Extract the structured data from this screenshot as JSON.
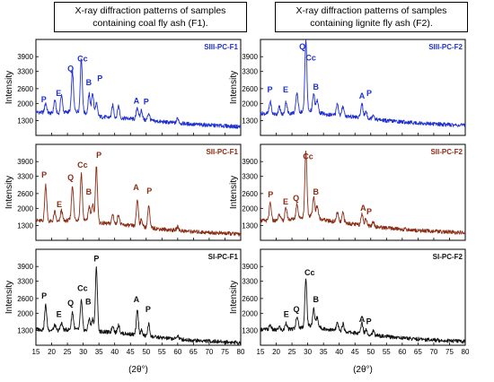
{
  "titles": {
    "left": "X-ray diffraction patterns of samples containing  coal fly ash (F1).",
    "right": "X-ray diffraction patterns of samples containing  lignite fly ash (F2)."
  },
  "chart_data": [
    {
      "type": "line",
      "column": "left",
      "row": 0,
      "sample": "SIII-PC-F1",
      "color": "#1f2fd0",
      "xlim": [
        15,
        80
      ],
      "ylim": [
        700,
        4600
      ],
      "yticks": [
        1300,
        2000,
        2600,
        3300,
        3900
      ],
      "xticks": [
        15,
        20,
        25,
        30,
        35,
        40,
        45,
        50,
        55,
        60,
        65,
        70,
        75,
        80
      ],
      "ylabel": "Intensity",
      "baseline": [
        [
          15,
          1650
        ],
        [
          22,
          1580
        ],
        [
          27,
          1700
        ],
        [
          31,
          1600
        ],
        [
          36,
          1450
        ],
        [
          45,
          1380
        ],
        [
          55,
          1250
        ],
        [
          65,
          1150
        ],
        [
          80,
          1050
        ]
      ],
      "peaks": [
        [
          18.1,
          400
        ],
        [
          21.0,
          550
        ],
        [
          23.1,
          750
        ],
        [
          26.6,
          1600
        ],
        [
          29.4,
          2200
        ],
        [
          31.9,
          800
        ],
        [
          33.0,
          900
        ],
        [
          34.2,
          500
        ],
        [
          39.4,
          500
        ],
        [
          41.2,
          500
        ],
        [
          47.2,
          500
        ],
        [
          48.5,
          400
        ],
        [
          50.8,
          300
        ],
        [
          60.0,
          200
        ]
      ],
      "annotations": [
        {
          "label": "P",
          "x": 17.5,
          "y": 2050
        },
        {
          "label": "E",
          "x": 22.2,
          "y": 2300
        },
        {
          "label": "Q",
          "x": 26.0,
          "y": 3300
        },
        {
          "label": "Cc",
          "x": 29.8,
          "y": 3700
        },
        {
          "label": "B",
          "x": 31.8,
          "y": 2750
        },
        {
          "label": "P",
          "x": 35.3,
          "y": 2900
        },
        {
          "label": "A",
          "x": 46.9,
          "y": 2000
        },
        {
          "label": "P",
          "x": 50.0,
          "y": 1950
        }
      ]
    },
    {
      "type": "line",
      "column": "left",
      "row": 1,
      "sample": "SII-PC-F1",
      "color": "#8b2c14",
      "xlim": [
        15,
        80
      ],
      "ylim": [
        700,
        4600
      ],
      "yticks": [
        1300,
        2000,
        2600,
        3300,
        3900
      ],
      "xticks": [
        15,
        20,
        25,
        30,
        35,
        40,
        45,
        50,
        55,
        60,
        65,
        70,
        75,
        80
      ],
      "ylabel": "Intensity",
      "baseline": [
        [
          15,
          1500
        ],
        [
          22,
          1450
        ],
        [
          27,
          1550
        ],
        [
          31,
          1500
        ],
        [
          36,
          1400
        ],
        [
          45,
          1300
        ],
        [
          55,
          1150
        ],
        [
          65,
          1050
        ],
        [
          80,
          950
        ]
      ],
      "peaks": [
        [
          18.1,
          1500
        ],
        [
          21.0,
          400
        ],
        [
          23.1,
          450
        ],
        [
          26.6,
          1400
        ],
        [
          29.4,
          1900
        ],
        [
          31.9,
          600
        ],
        [
          33.0,
          700
        ],
        [
          34.2,
          2300
        ],
        [
          39.4,
          400
        ],
        [
          41.2,
          400
        ],
        [
          47.2,
          1100
        ],
        [
          48.5,
          300
        ],
        [
          50.8,
          900
        ],
        [
          60.0,
          150
        ]
      ],
      "annotations": [
        {
          "label": "P",
          "x": 17.6,
          "y": 3250
        },
        {
          "label": "E",
          "x": 22.4,
          "y": 2050
        },
        {
          "label": "Q",
          "x": 26.0,
          "y": 3150
        },
        {
          "label": "Cc",
          "x": 29.8,
          "y": 3650
        },
        {
          "label": "B",
          "x": 31.8,
          "y": 2550
        },
        {
          "label": "P",
          "x": 35.0,
          "y": 4050
        },
        {
          "label": "A",
          "x": 46.8,
          "y": 2750
        },
        {
          "label": "P",
          "x": 51.0,
          "y": 2600
        }
      ]
    },
    {
      "type": "line",
      "column": "left",
      "row": 2,
      "sample": "SI-PC-F1",
      "color": "#111111",
      "xlim": [
        15,
        80
      ],
      "ylim": [
        700,
        4600
      ],
      "yticks": [
        1300,
        2000,
        2600,
        3300,
        3900
      ],
      "xticks": [
        15,
        20,
        25,
        30,
        35,
        40,
        45,
        50,
        55,
        60,
        65,
        70,
        75,
        80
      ],
      "ylabel": "Intensity",
      "xlabel": "(2θ°)",
      "baseline": [
        [
          15,
          1350
        ],
        [
          22,
          1300
        ],
        [
          27,
          1350
        ],
        [
          31,
          1300
        ],
        [
          36,
          1250
        ],
        [
          45,
          1150
        ],
        [
          55,
          1000
        ],
        [
          65,
          900
        ],
        [
          80,
          800
        ]
      ],
      "peaks": [
        [
          18.1,
          1000
        ],
        [
          21.0,
          200
        ],
        [
          23.1,
          300
        ],
        [
          26.6,
          700
        ],
        [
          29.4,
          1200
        ],
        [
          31.9,
          500
        ],
        [
          33.0,
          500
        ],
        [
          34.2,
          2600
        ],
        [
          39.4,
          300
        ],
        [
          41.2,
          350
        ],
        [
          47.2,
          1000
        ],
        [
          48.5,
          200
        ],
        [
          50.8,
          500
        ],
        [
          60.0,
          150
        ]
      ],
      "annotations": [
        {
          "label": "P",
          "x": 17.6,
          "y": 2600
        },
        {
          "label": "E",
          "x": 22.3,
          "y": 1850
        },
        {
          "label": "Q",
          "x": 26.0,
          "y": 2300
        },
        {
          "label": "Cc",
          "x": 29.8,
          "y": 2900
        },
        {
          "label": "B",
          "x": 31.6,
          "y": 2350
        },
        {
          "label": "P",
          "x": 34.2,
          "y": 4100
        },
        {
          "label": "A",
          "x": 46.9,
          "y": 2450
        },
        {
          "label": "P",
          "x": 50.6,
          "y": 2050
        }
      ]
    },
    {
      "type": "line",
      "column": "right",
      "row": 0,
      "sample": "SIII-PC-F2",
      "color": "#1f2fd0",
      "xlim": [
        15,
        80
      ],
      "ylim": [
        700,
        4600
      ],
      "yticks": [
        1300,
        2000,
        2600,
        3300,
        3900
      ],
      "xticks": [
        15,
        20,
        25,
        30,
        35,
        40,
        45,
        50,
        55,
        60,
        65,
        70,
        75,
        80
      ],
      "ylabel": "Intensity",
      "baseline": [
        [
          15,
          1600
        ],
        [
          22,
          1550
        ],
        [
          27,
          1650
        ],
        [
          31,
          1700
        ],
        [
          36,
          1550
        ],
        [
          45,
          1450
        ],
        [
          55,
          1300
        ],
        [
          65,
          1200
        ],
        [
          80,
          1100
        ]
      ],
      "peaks": [
        [
          18.1,
          500
        ],
        [
          21.0,
          300
        ],
        [
          23.1,
          500
        ],
        [
          26.6,
          800
        ],
        [
          29.4,
          2900
        ],
        [
          31.9,
          700
        ],
        [
          33.0,
          500
        ],
        [
          39.4,
          500
        ],
        [
          41.2,
          400
        ],
        [
          47.2,
          600
        ],
        [
          48.5,
          300
        ],
        [
          50.8,
          200
        ]
      ],
      "annotations": [
        {
          "label": "P",
          "x": 18.0,
          "y": 2450
        },
        {
          "label": "E",
          "x": 23.0,
          "y": 2450
        },
        {
          "label": "Q",
          "x": 28.3,
          "y": 4200
        },
        {
          "label": "Cc",
          "x": 31.0,
          "y": 3750
        },
        {
          "label": "B",
          "x": 32.6,
          "y": 2550
        },
        {
          "label": "A",
          "x": 47.2,
          "y": 2200
        },
        {
          "label": "P",
          "x": 49.5,
          "y": 2300
        }
      ]
    },
    {
      "type": "line",
      "column": "right",
      "row": 1,
      "sample": "SII-PC-F2",
      "color": "#8b2c14",
      "xlim": [
        15,
        80
      ],
      "ylim": [
        700,
        4600
      ],
      "yticks": [
        1300,
        2000,
        2600,
        3300,
        3900
      ],
      "xticks": [
        15,
        20,
        25,
        30,
        35,
        40,
        45,
        50,
        55,
        60,
        65,
        70,
        75,
        80
      ],
      "ylabel": "Intensity",
      "baseline": [
        [
          15,
          1500
        ],
        [
          22,
          1500
        ],
        [
          27,
          1600
        ],
        [
          31,
          1700
        ],
        [
          36,
          1500
        ],
        [
          45,
          1350
        ],
        [
          55,
          1200
        ],
        [
          65,
          1100
        ],
        [
          80,
          1000
        ]
      ],
      "peaks": [
        [
          18.1,
          700
        ],
        [
          21.0,
          300
        ],
        [
          23.1,
          500
        ],
        [
          26.6,
          600
        ],
        [
          29.4,
          2700
        ],
        [
          31.9,
          800
        ],
        [
          33.0,
          500
        ],
        [
          39.4,
          400
        ],
        [
          41.2,
          400
        ],
        [
          47.2,
          500
        ],
        [
          48.5,
          300
        ],
        [
          50.8,
          200
        ]
      ],
      "annotations": [
        {
          "label": "P",
          "x": 18.2,
          "y": 2450
        },
        {
          "label": "E",
          "x": 23.0,
          "y": 2150
        },
        {
          "label": "Q",
          "x": 26.3,
          "y": 2300
        },
        {
          "label": "Cc",
          "x": 30.1,
          "y": 4000
        },
        {
          "label": "B",
          "x": 32.6,
          "y": 2550
        },
        {
          "label": "A",
          "x": 47.6,
          "y": 1900
        },
        {
          "label": "P",
          "x": 49.5,
          "y": 1750
        }
      ]
    },
    {
      "type": "line",
      "column": "right",
      "row": 2,
      "sample": "SI-PC-F2",
      "color": "#111111",
      "xlim": [
        15,
        80
      ],
      "ylim": [
        700,
        4600
      ],
      "yticks": [
        1300,
        2000,
        2600,
        3300,
        3900
      ],
      "xticks": [
        15,
        20,
        25,
        30,
        35,
        40,
        45,
        50,
        55,
        60,
        65,
        70,
        75,
        80
      ],
      "ylabel": "Intensity",
      "xlabel": "(2θ°)",
      "baseline": [
        [
          15,
          1350
        ],
        [
          22,
          1300
        ],
        [
          27,
          1400
        ],
        [
          31,
          1500
        ],
        [
          36,
          1350
        ],
        [
          45,
          1200
        ],
        [
          55,
          1050
        ],
        [
          65,
          950
        ],
        [
          80,
          850
        ]
      ],
      "peaks": [
        [
          18.1,
          200
        ],
        [
          21.0,
          150
        ],
        [
          23.1,
          300
        ],
        [
          26.6,
          500
        ],
        [
          29.4,
          1900
        ],
        [
          31.9,
          700
        ],
        [
          33.0,
          400
        ],
        [
          39.4,
          300
        ],
        [
          41.2,
          300
        ],
        [
          47.2,
          450
        ],
        [
          48.5,
          200
        ],
        [
          50.8,
          150
        ]
      ],
      "annotations": [
        {
          "label": "E",
          "x": 23.2,
          "y": 1850
        },
        {
          "label": "Q",
          "x": 26.4,
          "y": 2050
        },
        {
          "label": "Cc",
          "x": 30.6,
          "y": 3550
        },
        {
          "label": "B",
          "x": 32.6,
          "y": 2450
        },
        {
          "label": "A",
          "x": 47.2,
          "y": 1650
        },
        {
          "label": "P",
          "x": 49.4,
          "y": 1550
        }
      ]
    }
  ]
}
